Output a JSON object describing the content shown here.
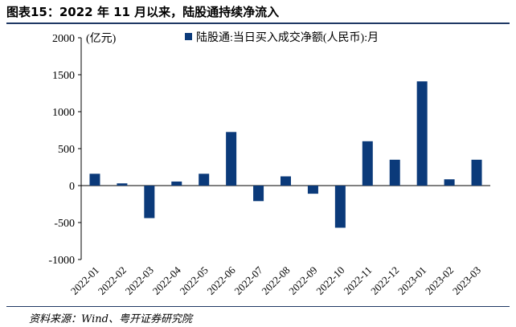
{
  "figure": {
    "title": "图表15：2022 年 11 月以来，陆股通持续净流入",
    "source": "资料来源：Wind、粤开证券研究院"
  },
  "chart_data": {
    "type": "bar",
    "unit_label": "(亿元)",
    "categories": [
      "2022-01",
      "2022-02",
      "2022-03",
      "2022-04",
      "2022-05",
      "2022-06",
      "2022-07",
      "2022-08",
      "2022-09",
      "2022-10",
      "2022-11",
      "2022-12",
      "2023-01",
      "2023-02",
      "2023-03"
    ],
    "series": [
      {
        "name": "陆股通:当日买入成交净额(人民币):月",
        "values": [
          160,
          30,
          -440,
          55,
          160,
          725,
          -210,
          125,
          -110,
          -570,
          600,
          350,
          1410,
          85,
          350
        ]
      }
    ],
    "ylim": [
      -1000,
      2000
    ],
    "yticks": [
      -1000,
      -500,
      0,
      500,
      1000,
      1500,
      2000
    ],
    "legend_position": "top",
    "grid": false,
    "colors": {
      "bar": "#0b3a7a",
      "rule": "#1f3864"
    }
  }
}
